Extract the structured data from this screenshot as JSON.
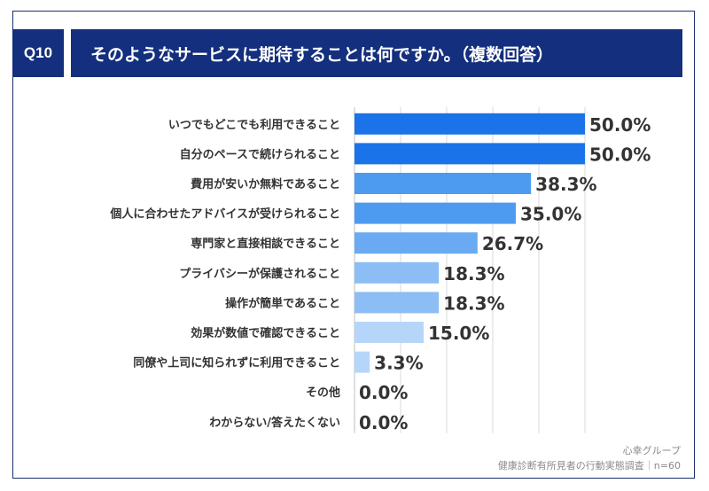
{
  "header": {
    "question_number": "Q10",
    "title": "そのようなサービスに期待することは何ですか。（複数回答）"
  },
  "chart_data": {
    "type": "bar",
    "orientation": "horizontal",
    "categories": [
      "いつでもどこでも利用できること",
      "自分のペースで続けられること",
      "費用が安いか無料であること",
      "個人に合わせたアドバイスが受けられること",
      "専門家と直接相談できること",
      "プライバシーが保護されること",
      "操作が簡単であること",
      "効果が数値で確認できること",
      "同僚や上司に知られずに利用できること",
      "その他",
      "わからない/答えたくない"
    ],
    "values": [
      50.0,
      50.0,
      38.3,
      35.0,
      26.7,
      18.3,
      18.3,
      15.0,
      3.3,
      0.0,
      0.0
    ],
    "value_labels": [
      "50.0%",
      "50.0%",
      "38.3%",
      "35.0%",
      "26.7%",
      "18.3%",
      "18.3%",
      "15.0%",
      "3.3%",
      "0.0%",
      "0.0%"
    ],
    "bar_colors": [
      "#1a73e8",
      "#1a73e8",
      "#4d9bf0",
      "#4d9bf0",
      "#6aaaf2",
      "#8cbef5",
      "#8cbef5",
      "#b6d6f9",
      "#b6d6f9",
      "#b6d6f9",
      "#b6d6f9"
    ],
    "xlim": [
      0,
      50
    ],
    "grid": true,
    "gridline_color": "#d9d9d9"
  },
  "source": {
    "company": "心幸グループ",
    "survey": "健康診断有所見者の行動実態調査｜n=60"
  }
}
